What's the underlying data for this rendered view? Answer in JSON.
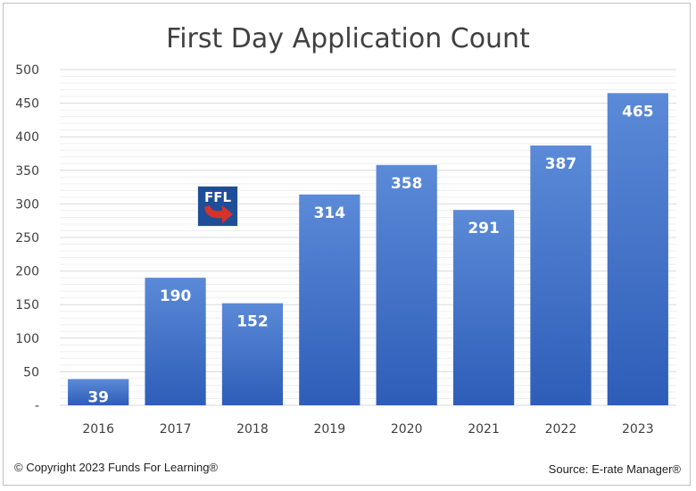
{
  "chart_data": {
    "type": "bar",
    "title": "First Day Application Count",
    "categories": [
      "2016",
      "2017",
      "2018",
      "2019",
      "2020",
      "2021",
      "2022",
      "2023"
    ],
    "values": [
      39,
      190,
      152,
      314,
      358,
      291,
      387,
      465
    ],
    "data_labels": [
      "39",
      "190",
      "152",
      "314",
      "358",
      "291",
      "387",
      "465"
    ],
    "ylim": [
      0,
      500
    ],
    "y_ticks": [
      "-",
      "50",
      "100",
      "150",
      "200",
      "250",
      "300",
      "350",
      "400",
      "450",
      "500"
    ],
    "y_tick_values": [
      0,
      50,
      100,
      150,
      200,
      250,
      300,
      350,
      400,
      450,
      500
    ],
    "xlabel": "",
    "ylabel": "",
    "grid": true,
    "legend": "none",
    "bar_color_top": "#5b8ad8",
    "bar_color_bottom": "#2e5db8"
  },
  "footer": {
    "copyright": "© Copyright 2023 Funds For Learning®",
    "source": "Source: E-rate Manager®"
  },
  "logo": {
    "text": "FFL",
    "icon": "ffl-logo-icon",
    "color_blue": "#1f4e99",
    "color_red": "#d6322b"
  }
}
